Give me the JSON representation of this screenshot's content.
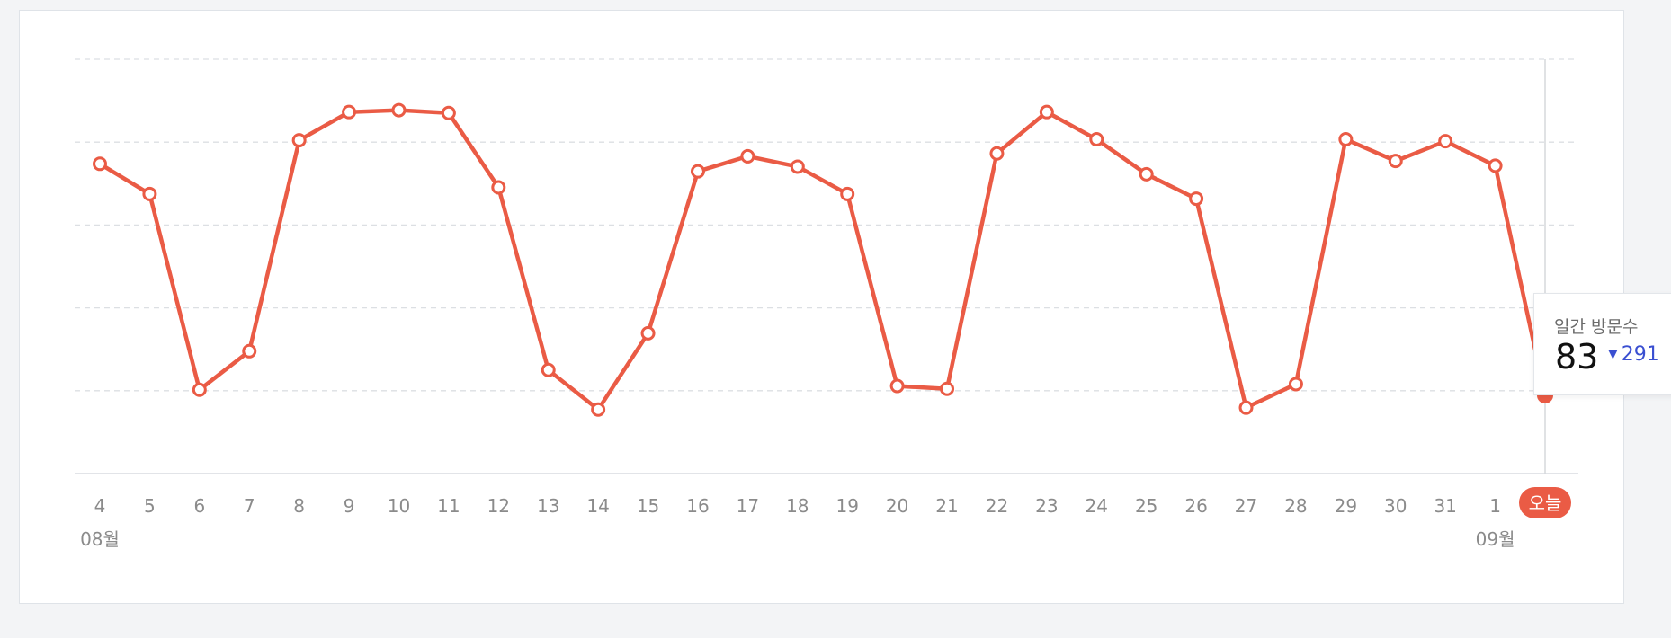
{
  "colors": {
    "line": "#ea5b45",
    "grid": "#dcdfe3",
    "axis": "#d9dce0",
    "tick_text": "#8b8b8b",
    "today_badge": "#ea5b45",
    "change_down": "#3a4fd1"
  },
  "tooltip": {
    "title": "일간 방문수",
    "value": "83",
    "change_icon": "triangle-down-icon",
    "change": "291"
  },
  "chart_data": {
    "type": "line",
    "x_labels": [
      "4",
      "5",
      "6",
      "7",
      "8",
      "9",
      "10",
      "11",
      "12",
      "13",
      "14",
      "15",
      "16",
      "17",
      "18",
      "19",
      "20",
      "21",
      "22",
      "23",
      "24",
      "25",
      "26",
      "27",
      "28",
      "29",
      "30",
      "31",
      "1",
      "오늘"
    ],
    "month_labels": [
      {
        "label": "08월",
        "at_index": 0
      },
      {
        "label": "09월",
        "at_index": 28
      }
    ],
    "today_label": "오늘",
    "series": [
      {
        "values": [
          329,
          297,
          89,
          130,
          354,
          384,
          386,
          383,
          304,
          110,
          68,
          149,
          321,
          337,
          326,
          297,
          93,
          90,
          340,
          384,
          355,
          318,
          292,
          70,
          95,
          355,
          332,
          353,
          327,
          83
        ]
      }
    ],
    "highlight_index": 29,
    "ylim": [
      0,
      440
    ],
    "gridline_count": 5,
    "grid": true
  }
}
